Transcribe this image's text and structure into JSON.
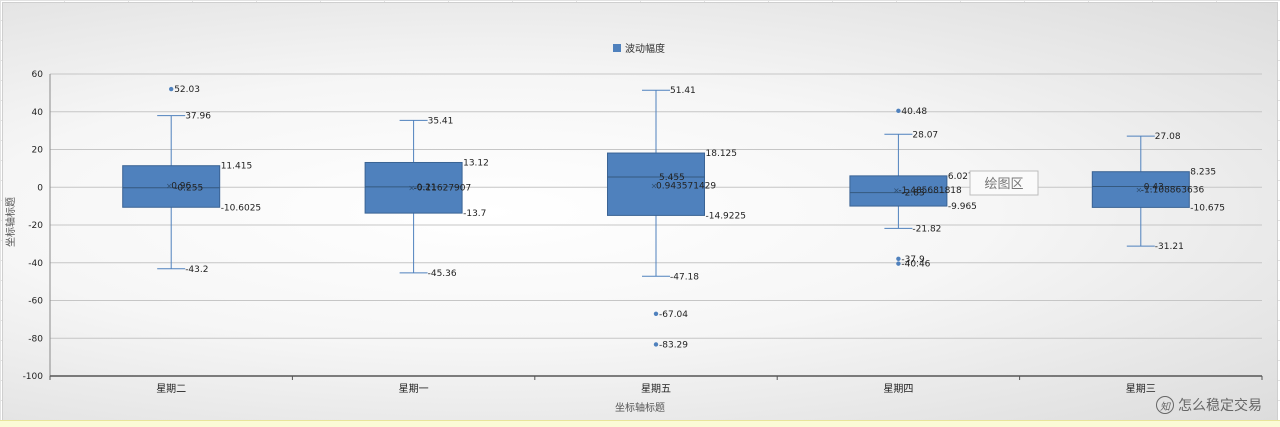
{
  "chart_data": {
    "type": "box",
    "legend": {
      "label": "波动幅度",
      "color": "#4f81bd",
      "position": "top"
    },
    "xlabel": "坐标轴标题",
    "ylabel": "坐标轴标题",
    "ylim": [
      -100,
      60
    ],
    "yticks": [
      60,
      40,
      20,
      0,
      -20,
      -40,
      -60,
      -80,
      -100
    ],
    "ytick_labels": [
      "60",
      "40",
      "20",
      "0",
      "-20",
      "-40",
      "-60",
      "-80",
      "-100"
    ],
    "grid": true,
    "tooltip": "绘图区",
    "categories": [
      "星期二",
      "星期一",
      "星期五",
      "星期四",
      "星期三"
    ],
    "boxes": [
      {
        "category": "星期二",
        "whisker_high": 37.96,
        "q3": 11.415,
        "median": -0.255,
        "q1": -10.6025,
        "whisker_low": -43.2,
        "mean": 0.96,
        "labels": {
          "whisker_high": "37.96",
          "q3": "11.415",
          "median": "-0.255",
          "q1": "-10.6025",
          "whisker_low": "-43.2",
          "mean": "0.96"
        },
        "outliers": [
          {
            "value": 52.03,
            "label": "52.03"
          }
        ]
      },
      {
        "category": "星期一",
        "whisker_high": 35.41,
        "q3": 13.12,
        "median": 0.21,
        "q1": -13.7,
        "whisker_low": -45.36,
        "mean": -0.11627907,
        "labels": {
          "whisker_high": "35.41",
          "q3": "13.12",
          "median": "0.21",
          "q1": "-13.7",
          "whisker_low": "-45.36",
          "mean": "-0.11627907"
        },
        "outliers": []
      },
      {
        "category": "星期五",
        "whisker_high": 51.41,
        "q3": 18.125,
        "median": 5.455,
        "q1": -14.9225,
        "whisker_low": -47.18,
        "mean": 0.943571429,
        "labels": {
          "whisker_high": "51.41",
          "q3": "18.125",
          "median": "5.455",
          "q1": "-14.9225",
          "whisker_low": "-47.18",
          "mean": "0.943571429"
        },
        "outliers": [
          {
            "value": -67.04,
            "label": "-67.04"
          },
          {
            "value": -83.29,
            "label": "-83.29"
          }
        ]
      },
      {
        "category": "星期四",
        "whisker_high": 28.07,
        "q3": 6.0275,
        "median": -2.83,
        "q1": -9.965,
        "whisker_low": -21.82,
        "mean": -1.485681818,
        "labels": {
          "whisker_high": "28.07",
          "q3": "6.0275",
          "median": "-2.83",
          "q1": "-9.965",
          "whisker_low": "-21.82",
          "mean": "-1.485681818"
        },
        "outliers": [
          {
            "value": 40.48,
            "label": "40.48"
          },
          {
            "value": -37.9,
            "label": "-37.9"
          },
          {
            "value": -40.46,
            "label": "-40.46"
          }
        ]
      },
      {
        "category": "星期三",
        "whisker_high": 27.08,
        "q3": 8.235,
        "median": 0.43,
        "q1": -10.675,
        "whisker_low": -31.21,
        "mean": -1.108863636,
        "labels": {
          "whisker_high": "27.08",
          "q3": "8.235",
          "median": "0.43",
          "q1": "-10.675",
          "whisker_low": "-31.21",
          "mean": "-1.108863636"
        },
        "outliers": []
      }
    ]
  },
  "watermark": {
    "text": "怎么稳定交易",
    "logo": "知"
  }
}
